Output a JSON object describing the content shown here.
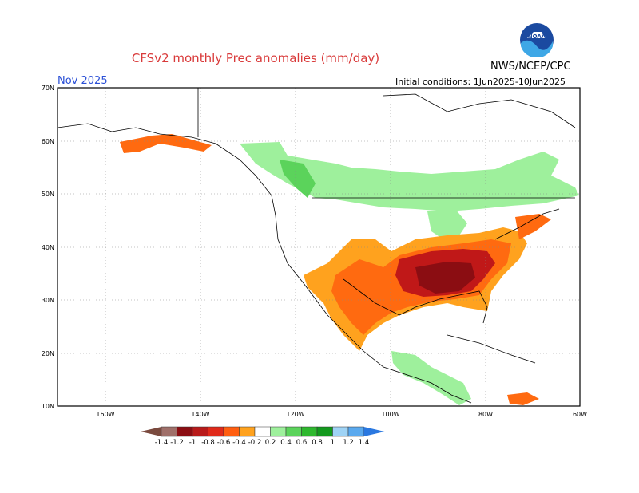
{
  "header": {
    "title": "CFSv2 monthly Prec anomalies (mm/day)",
    "org": "NWS/NCEP/CPC",
    "month": "Nov 2025",
    "init": "Initial conditions: 1Jun2025-10Jun2025",
    "logo_text": "NOAA"
  },
  "axes": {
    "lat_labels": [
      "70N",
      "60N",
      "50N",
      "40N",
      "30N",
      "20N",
      "10N"
    ],
    "lon_labels": [
      "160W",
      "140W",
      "120W",
      "100W",
      "80W",
      "60W"
    ]
  },
  "colorbar": {
    "labels": [
      "-1.4",
      "-1.2",
      "-1",
      "-0.8",
      "-0.6",
      "-0.4",
      "-0.2",
      "0.2",
      "0.4",
      "0.6",
      "0.8",
      "1",
      "1.2",
      "1.4"
    ],
    "colors": [
      "#7a4a3e",
      "#a0706a",
      "#8b0d12",
      "#b81a1a",
      "#e02a1a",
      "#ff5e10",
      "#ffa21e",
      "#ffffff",
      "#9ef09c",
      "#5bd35b",
      "#2eb82e",
      "#13991e",
      "#9fd3f5",
      "#5aa9ee",
      "#2a78e0"
    ]
  },
  "colors": {
    "dry_brown": "#a86b5b",
    "dry_darkred": "#8b0d12",
    "dry_red": "#c01818",
    "dry_orange": "#ff6a10",
    "dry_amber": "#ffa21e",
    "wet_light": "#9ef09c",
    "wet_mid": "#5bd35b",
    "wet_dark": "#2eb82e"
  }
}
